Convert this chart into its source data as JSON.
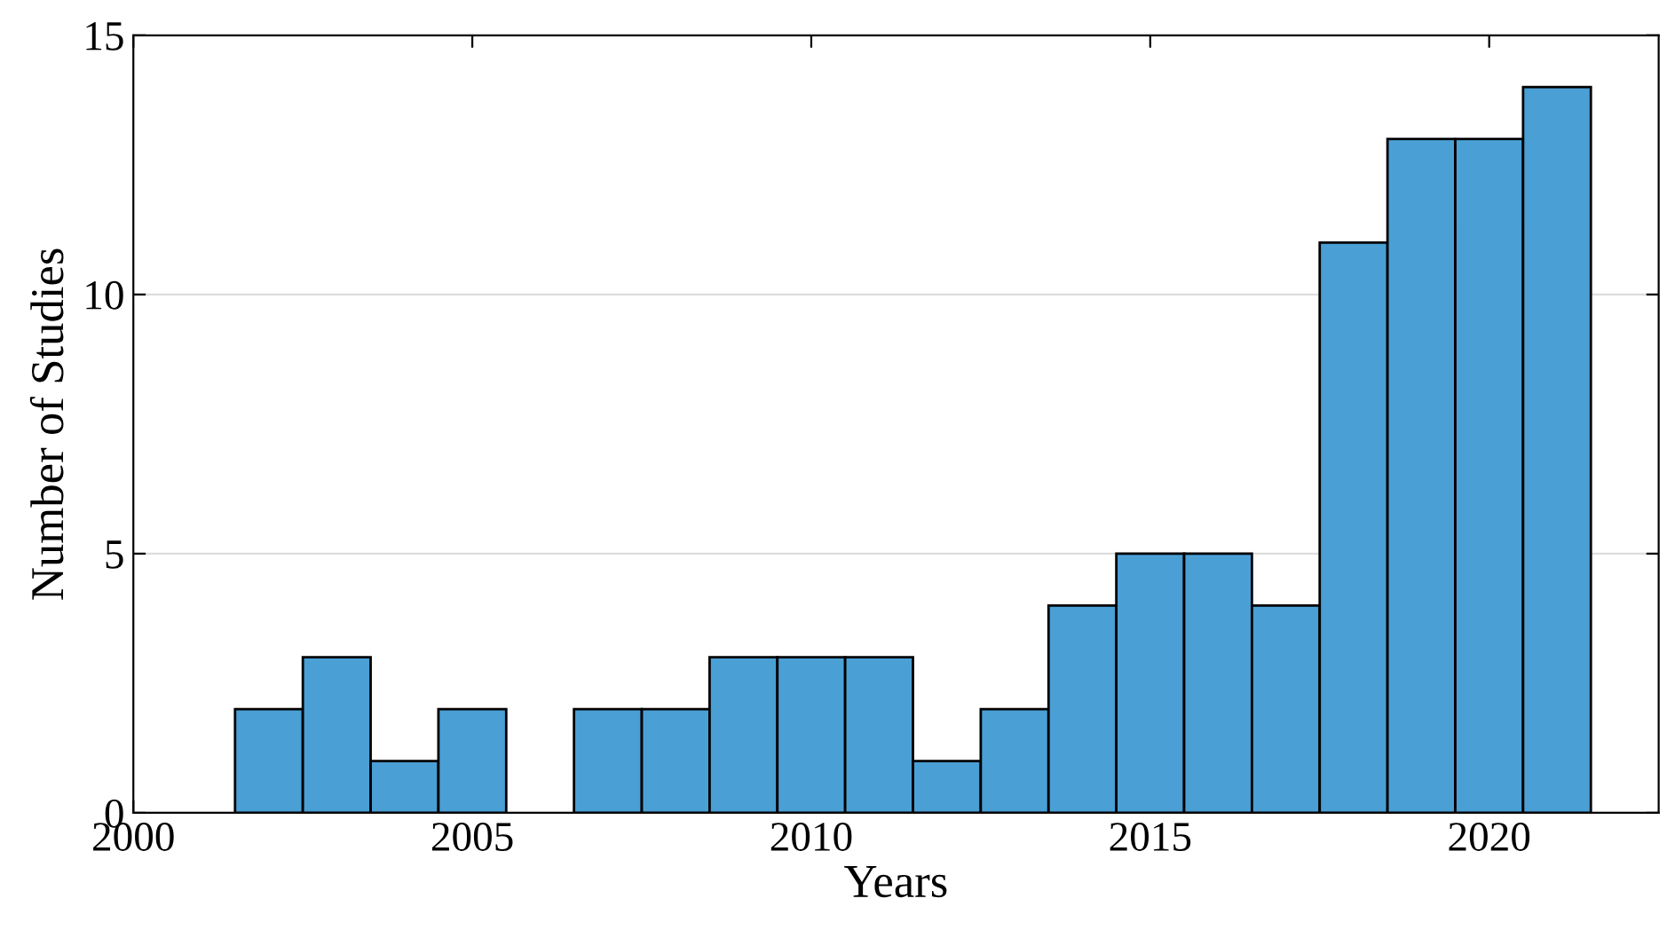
{
  "chart_data": {
    "type": "histogram",
    "xlabel": "Years",
    "ylabel": "Number of Studies",
    "bins": [
      2001.5,
      2002.5,
      2003.5,
      2004.5,
      2005.5,
      2006.5,
      2007.5,
      2008.5,
      2009.5,
      2010.5,
      2011.5,
      2012.5,
      2013.5,
      2014.5,
      2015.5,
      2016.5,
      2017.5,
      2018.5,
      2019.5,
      2020.5,
      2021.5
    ],
    "values": [
      2,
      3,
      1,
      2,
      0,
      2,
      2,
      3,
      3,
      3,
      1,
      2,
      4,
      5,
      5,
      4,
      11,
      13,
      13,
      14
    ],
    "color": "#4a9fd5",
    "xlim": [
      2000,
      2022.5
    ],
    "xticks": [
      2000,
      2005,
      2010,
      2015,
      2020
    ],
    "ylim": [
      0,
      15
    ],
    "yticks": [
      0,
      5,
      10,
      15
    ],
    "grid": "y"
  }
}
